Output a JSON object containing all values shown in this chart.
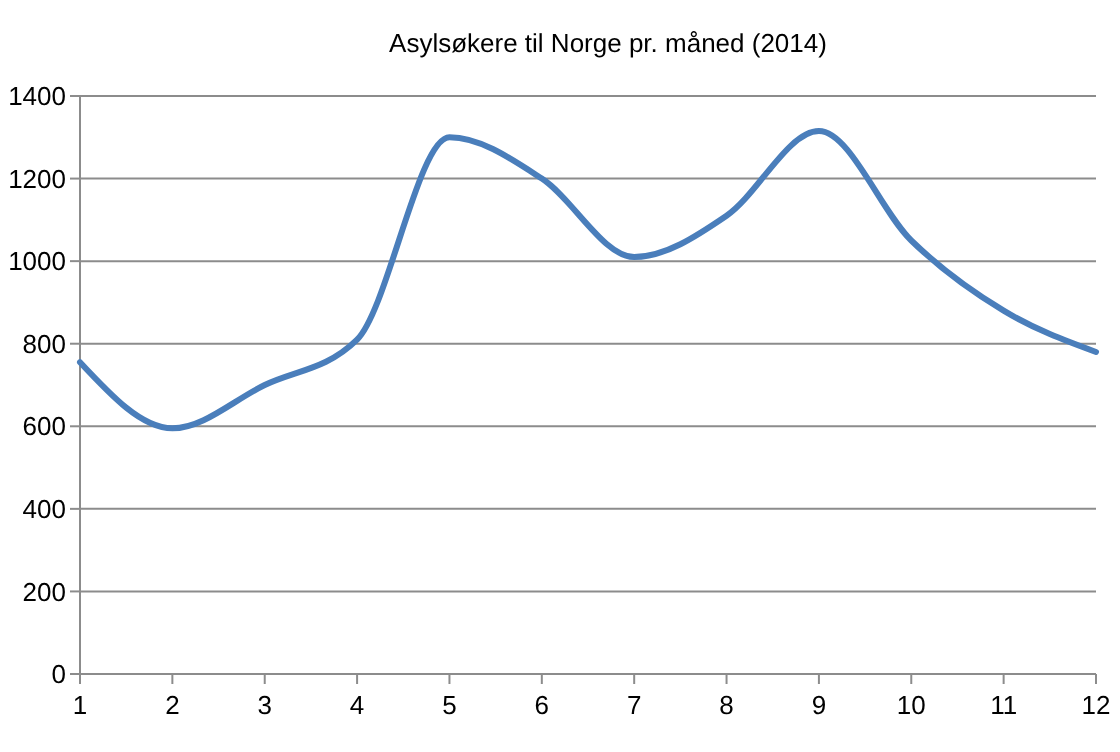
{
  "chart_data": {
    "type": "line",
    "title": "Asylsøkere til Norge pr. måned (2014)",
    "x": [
      1,
      2,
      3,
      4,
      5,
      6,
      7,
      8,
      9,
      10,
      11,
      12
    ],
    "series": [
      {
        "color": "#4a7ebb",
        "values": [
          755,
          595,
          700,
          810,
          1300,
          1200,
          1010,
          1110,
          1315,
          1050,
          880,
          780
        ]
      }
    ],
    "xlim": [
      1,
      12
    ],
    "xticks": [
      1,
      2,
      3,
      4,
      5,
      6,
      7,
      8,
      9,
      10,
      11,
      12
    ],
    "ylim": [
      0,
      1400
    ],
    "yticks": [
      0,
      200,
      400,
      600,
      800,
      1000,
      1200,
      1400
    ],
    "grid": "y",
    "line_style": "solid"
  }
}
